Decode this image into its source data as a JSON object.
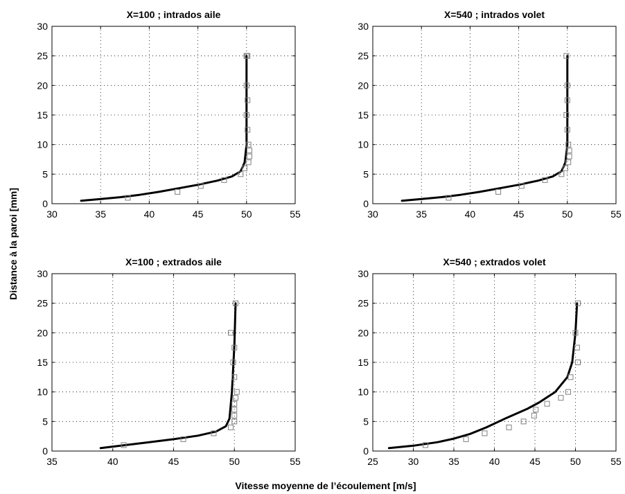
{
  "figure": {
    "xlabel": "Vitesse moyenne de l’écoulement [m/s]",
    "ylabel": "Distance à la paroi [mm]"
  },
  "style": {
    "line_color": "#000000",
    "marker_color": "#808080",
    "marker": "open-square",
    "grid": "dotted"
  },
  "chart_data": [
    {
      "type": "line",
      "title": "X=100 ; intrados aile",
      "xlim": [
        30,
        55
      ],
      "ylim": [
        0,
        30
      ],
      "xticks": [
        30,
        35,
        40,
        45,
        50,
        55
      ],
      "yticks": [
        0,
        5,
        10,
        15,
        20,
        25,
        30
      ],
      "grid": true,
      "series": [
        {
          "kind": "line",
          "x": [
            33,
            35,
            37,
            39,
            41,
            43,
            45,
            47,
            48.5,
            49.4,
            49.8,
            50,
            50,
            50
          ],
          "y": [
            0.5,
            0.8,
            1.1,
            1.5,
            2.0,
            2.6,
            3.2,
            3.9,
            4.6,
            5.5,
            7,
            10,
            18,
            25
          ]
        },
        {
          "kind": "markers",
          "x": [
            37.8,
            42.9,
            45.3,
            47.7,
            49.4,
            49.8,
            50.2,
            50.3,
            50.3,
            50.2,
            50.1,
            50,
            50.1,
            50,
            50,
            50.1,
            50
          ],
          "y": [
            1,
            2,
            3,
            4,
            5,
            6,
            7,
            8,
            9,
            10,
            12.5,
            15,
            17.5,
            20,
            25,
            25,
            25
          ]
        }
      ]
    },
    {
      "type": "line",
      "title": "X=540 ; intrados volet",
      "xlim": [
        30,
        55
      ],
      "ylim": [
        0,
        30
      ],
      "xticks": [
        30,
        35,
        40,
        45,
        50,
        55
      ],
      "yticks": [
        0,
        5,
        10,
        15,
        20,
        25,
        30
      ],
      "grid": true,
      "series": [
        {
          "kind": "line",
          "x": [
            33,
            35,
            37,
            39,
            41,
            43,
            45,
            47,
            48.5,
            49.4,
            49.8,
            50,
            50,
            50
          ],
          "y": [
            0.5,
            0.8,
            1.1,
            1.5,
            2.0,
            2.6,
            3.2,
            3.9,
            4.6,
            5.5,
            7,
            10,
            18,
            25
          ]
        },
        {
          "kind": "markers",
          "x": [
            37.8,
            42.9,
            45.3,
            47.7,
            49.4,
            49.8,
            50.1,
            50.2,
            50.2,
            50.1,
            50,
            49.9,
            50,
            50,
            49.9
          ],
          "y": [
            1,
            2,
            3,
            4,
            5,
            6,
            7,
            8,
            9,
            10,
            12.5,
            15,
            17.5,
            20,
            25
          ]
        }
      ]
    },
    {
      "type": "line",
      "title": "X=100 ; extrados aile",
      "xlim": [
        35,
        55
      ],
      "ylim": [
        0,
        30
      ],
      "xticks": [
        35,
        40,
        45,
        50,
        55
      ],
      "yticks": [
        0,
        5,
        10,
        15,
        20,
        25,
        30
      ],
      "grid": true,
      "series": [
        {
          "kind": "line",
          "x": [
            39,
            41,
            43,
            45,
            47,
            48.5,
            49.3,
            49.6,
            49.8,
            50,
            50.1
          ],
          "y": [
            0.5,
            1.0,
            1.5,
            2.0,
            2.6,
            3.3,
            4.2,
            5.5,
            10,
            18,
            25
          ]
        },
        {
          "kind": "markers",
          "x": [
            40.9,
            45.8,
            48.3,
            49.7,
            50,
            50,
            50,
            50,
            50.1,
            50.2,
            50,
            49.9,
            50,
            49.7,
            50.1
          ],
          "y": [
            1,
            2,
            3,
            4,
            5,
            6,
            7,
            8,
            9,
            10,
            12.5,
            15,
            17.5,
            20,
            25
          ]
        }
      ]
    },
    {
      "type": "line",
      "title": "X=540 ; extrados volet",
      "xlim": [
        25,
        55
      ],
      "ylim": [
        0,
        30
      ],
      "xticks": [
        25,
        30,
        35,
        40,
        45,
        50,
        55
      ],
      "yticks": [
        0,
        5,
        10,
        15,
        20,
        25,
        30
      ],
      "grid": true,
      "series": [
        {
          "kind": "line",
          "x": [
            27,
            30,
            33,
            35,
            37,
            39,
            41.5,
            44,
            45.5,
            47.5,
            49,
            49.6,
            50,
            50.2
          ],
          "y": [
            0.5,
            0.9,
            1.5,
            2.1,
            2.9,
            4.0,
            5.6,
            7.1,
            8.2,
            10.0,
            12.5,
            15,
            20,
            25
          ]
        },
        {
          "kind": "markers",
          "x": [
            31.5,
            36.5,
            38.8,
            41.8,
            43.6,
            44.9,
            45.1,
            46.5,
            48.2,
            49.1,
            49.4,
            50.3,
            50.2,
            50,
            50.3
          ],
          "y": [
            1,
            2,
            3,
            4,
            5,
            6,
            7,
            8,
            9,
            10,
            12.5,
            15,
            17.5,
            20,
            25
          ]
        }
      ]
    }
  ]
}
